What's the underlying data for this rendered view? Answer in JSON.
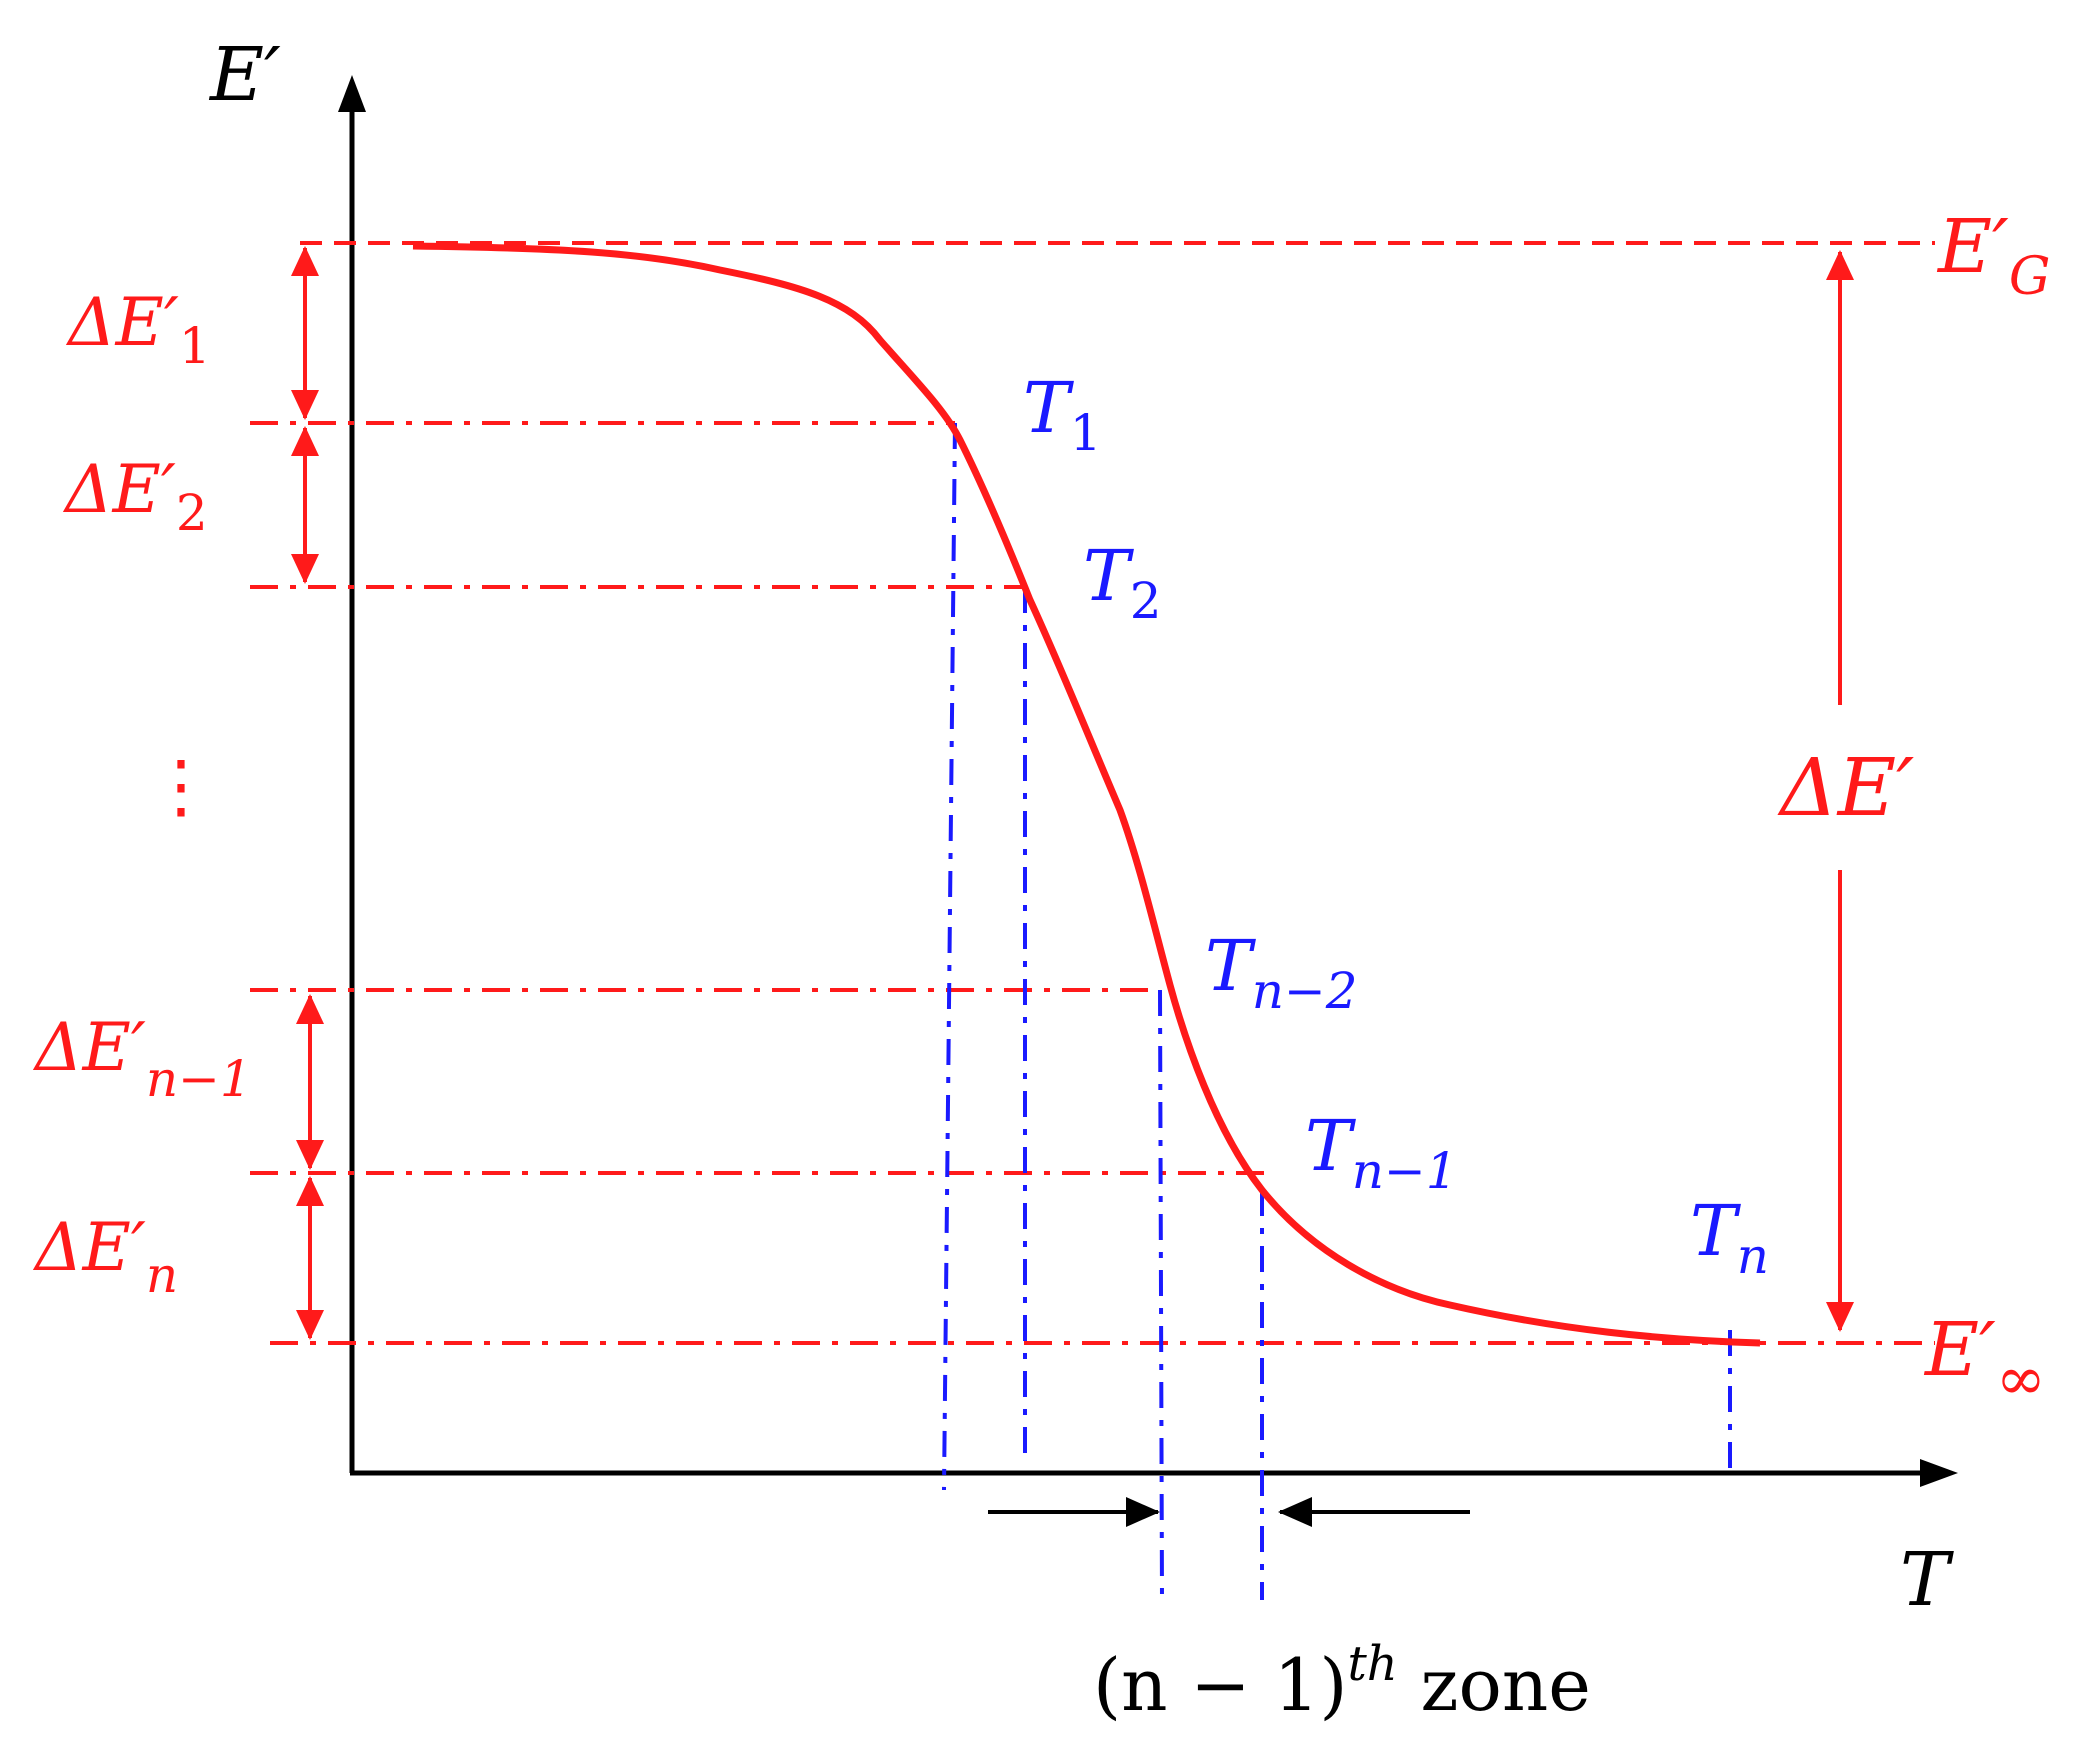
{
  "colors": {
    "curve": "#ff1a1a",
    "level_lines": "#ff1a1a",
    "temperature_lines": "#1a1aff",
    "axes": "#000000"
  },
  "axes": {
    "y_label": "E′",
    "x_label": "T"
  },
  "levels": {
    "glassy": {
      "main": "E′",
      "sub": "G"
    },
    "infinity": {
      "main": "E′",
      "sub": "∞"
    },
    "total_delta": "ΔE′",
    "deltas": [
      {
        "main": "ΔE′",
        "sub": "1"
      },
      {
        "main": "ΔE′",
        "sub": "2"
      },
      {
        "main": "ΔE′",
        "sub": "n−1"
      },
      {
        "main": "ΔE′",
        "sub": "n"
      }
    ],
    "ellipsis": "⋮"
  },
  "temperatures": [
    {
      "main": "T",
      "sub": "1"
    },
    {
      "main": "T",
      "sub": "2"
    },
    {
      "main": "T",
      "sub": "n−2"
    },
    {
      "main": "T",
      "sub": "n−1"
    },
    {
      "main": "T",
      "sub": "n"
    }
  ],
  "zone": {
    "base": "(n − 1)",
    "sup": "th",
    "word": " zone"
  }
}
